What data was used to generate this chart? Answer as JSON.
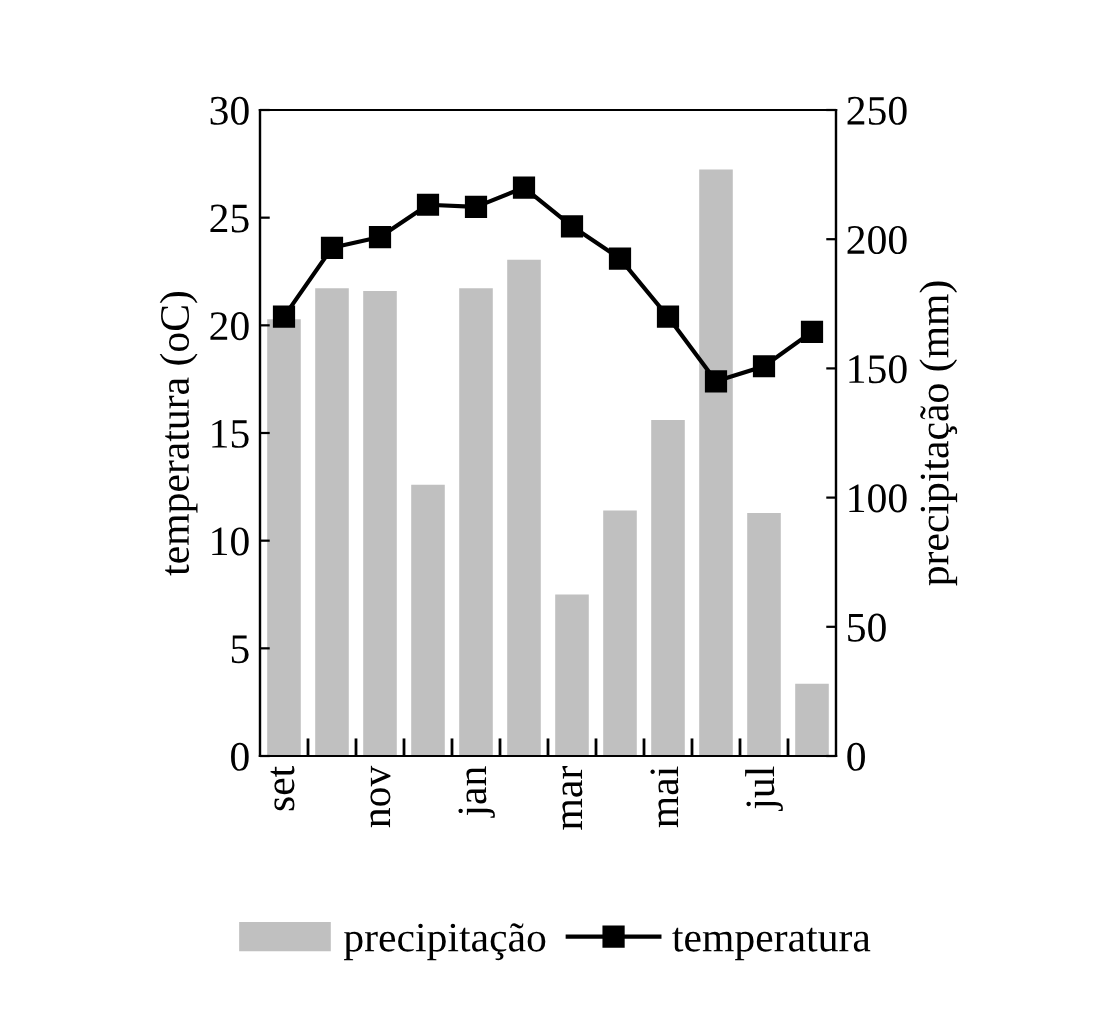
{
  "chart_data": {
    "type": "bar",
    "categories": [
      "set",
      null,
      "nov",
      null,
      "jan",
      null,
      "mar",
      null,
      "mai",
      null,
      "jul",
      null
    ],
    "series": [
      {
        "name": "precipitação",
        "axis": "y2",
        "color": "#c0c0c0",
        "values": [
          169,
          181,
          180,
          105,
          181,
          192,
          62.5,
          95,
          130,
          227,
          94,
          28
        ]
      },
      {
        "name": "temperatura",
        "type": "line",
        "color": "#000000",
        "marker": "square",
        "values": [
          20.4,
          23.6,
          24.1,
          25.6,
          25.5,
          26.4,
          24.6,
          23.1,
          20.4,
          17.4,
          18.1,
          19.7
        ]
      }
    ],
    "ylabel": "temperatura (oC)",
    "y2label": "precipitação (mm)",
    "ylim": [
      0,
      30
    ],
    "yticks": [
      0,
      5,
      10,
      15,
      20,
      25,
      30
    ],
    "y2lim": [
      0,
      250
    ],
    "y2ticks": [
      0,
      50,
      100,
      150,
      200,
      250
    ],
    "grid": false,
    "legend": "bottom"
  }
}
